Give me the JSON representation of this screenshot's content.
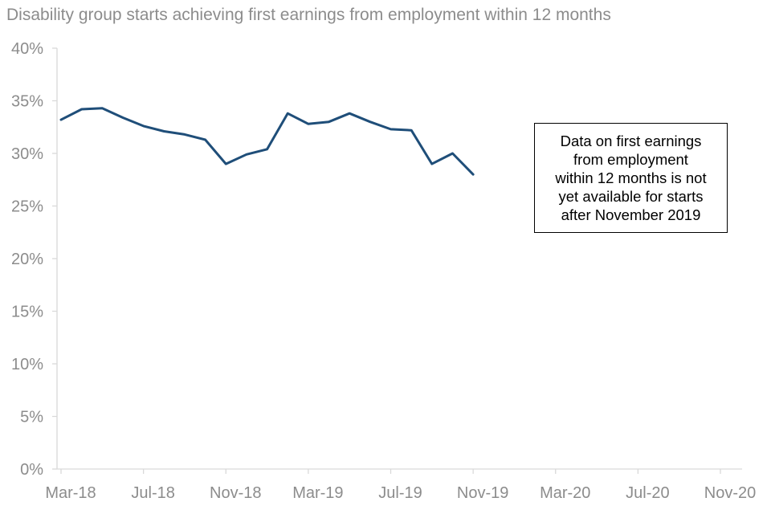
{
  "chart_data": {
    "type": "line",
    "title": "Disability group starts achieving first earnings from employment within 12 months",
    "xlabel": "",
    "ylabel": "",
    "ylim": [
      0,
      40
    ],
    "y_ticks": [
      "0%",
      "5%",
      "10%",
      "15%",
      "20%",
      "25%",
      "30%",
      "35%",
      "40%"
    ],
    "y_tick_values": [
      0,
      5,
      10,
      15,
      20,
      25,
      30,
      35,
      40
    ],
    "x_ticks": [
      "Mar-18",
      "Jul-18",
      "Nov-18",
      "Mar-19",
      "Jul-19",
      "Nov-19",
      "Mar-20",
      "Jul-20",
      "Nov-20"
    ],
    "xlim": [
      "2018-03",
      "2020-11"
    ],
    "grid": false,
    "series": [
      {
        "color": "#1f4e79",
        "x": [
          "2018-03",
          "2018-04",
          "2018-05",
          "2018-06",
          "2018-07",
          "2018-08",
          "2018-09",
          "2018-10",
          "2018-11",
          "2018-12",
          "2019-01",
          "2019-02",
          "2019-03",
          "2019-04",
          "2019-05",
          "2019-06",
          "2019-07",
          "2019-08",
          "2019-09",
          "2019-10",
          "2019-11"
        ],
        "values": [
          33.2,
          34.2,
          34.3,
          33.4,
          32.6,
          32.1,
          31.8,
          31.3,
          29.0,
          29.9,
          30.4,
          33.8,
          32.8,
          33.0,
          33.8,
          33.0,
          32.3,
          32.2,
          29.0,
          30.0,
          28.0
        ]
      }
    ],
    "annotations": [
      "Data on first earnings\nfrom employment\nwithin 12 months is not\nyet available for starts\nafter November 2019"
    ]
  }
}
